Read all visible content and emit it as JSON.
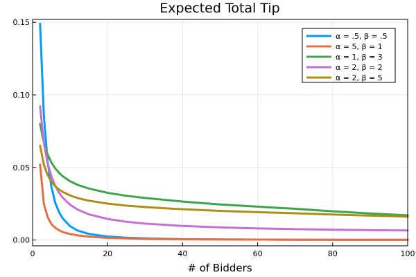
{
  "chart_data": {
    "type": "line",
    "title": "Expected Total Tip",
    "xlabel": "# of Bidders",
    "ylabel": "",
    "xlim": [
      0,
      100
    ],
    "ylim": [
      -0.004,
      0.152
    ],
    "grid": true,
    "legend_position": "top-right",
    "x_ticks": [
      0,
      20,
      40,
      60,
      80,
      100
    ],
    "x_tick_labels": [
      "0",
      "20",
      "40",
      "60",
      "80",
      "100"
    ],
    "y_ticks": [
      0,
      0.05,
      0.1,
      0.15
    ],
    "y_tick_labels": [
      "0.00",
      "0.05",
      "0.10",
      "0.15"
    ],
    "x": [
      2,
      3,
      4,
      5,
      6,
      7,
      8,
      10,
      12,
      15,
      20,
      25,
      30,
      40,
      50,
      60,
      70,
      80,
      90,
      100
    ],
    "series": [
      {
        "name": "α = .5, β = .5",
        "color": "#009af9",
        "values": [
          0.149,
          0.086,
          0.054,
          0.037,
          0.026,
          0.0195,
          0.015,
          0.0095,
          0.0065,
          0.0042,
          0.0024,
          0.0016,
          0.0011,
          0.0006,
          0.0004,
          0.0003,
          0.0002,
          0.00015,
          0.0001,
          0.0001
        ]
      },
      {
        "name": "α = 5, β = 1",
        "color": "#e26f46",
        "values": [
          0.052,
          0.025,
          0.016,
          0.011,
          0.0085,
          0.0068,
          0.0056,
          0.0041,
          0.0032,
          0.0023,
          0.0015,
          0.0011,
          0.0008,
          0.0005,
          0.0004,
          0.0003,
          0.00025,
          0.0002,
          0.00018,
          0.00015
        ]
      },
      {
        "name": "α = 1, β = 3",
        "color": "#3da44d",
        "values": [
          0.08,
          0.067,
          0.059,
          0.0535,
          0.0495,
          0.0465,
          0.044,
          0.0405,
          0.038,
          0.0355,
          0.0325,
          0.0305,
          0.029,
          0.0265,
          0.0245,
          0.023,
          0.0215,
          0.0198,
          0.0183,
          0.017
        ]
      },
      {
        "name": "α = 2, β = 2",
        "color": "#c271d2",
        "values": [
          0.092,
          0.067,
          0.053,
          0.044,
          0.0375,
          0.0328,
          0.0293,
          0.0243,
          0.021,
          0.0177,
          0.0145,
          0.0126,
          0.0113,
          0.0097,
          0.0087,
          0.008,
          0.0075,
          0.0071,
          0.0068,
          0.0066
        ]
      },
      {
        "name": "α = 2, β = 5",
        "color": "#ac8d18",
        "values": [
          0.065,
          0.052,
          0.0448,
          0.0403,
          0.0372,
          0.0349,
          0.0332,
          0.0307,
          0.0289,
          0.0271,
          0.0251,
          0.0237,
          0.0227,
          0.0212,
          0.0201,
          0.0192,
          0.0184,
          0.0176,
          0.0168,
          0.0161
        ]
      }
    ]
  }
}
